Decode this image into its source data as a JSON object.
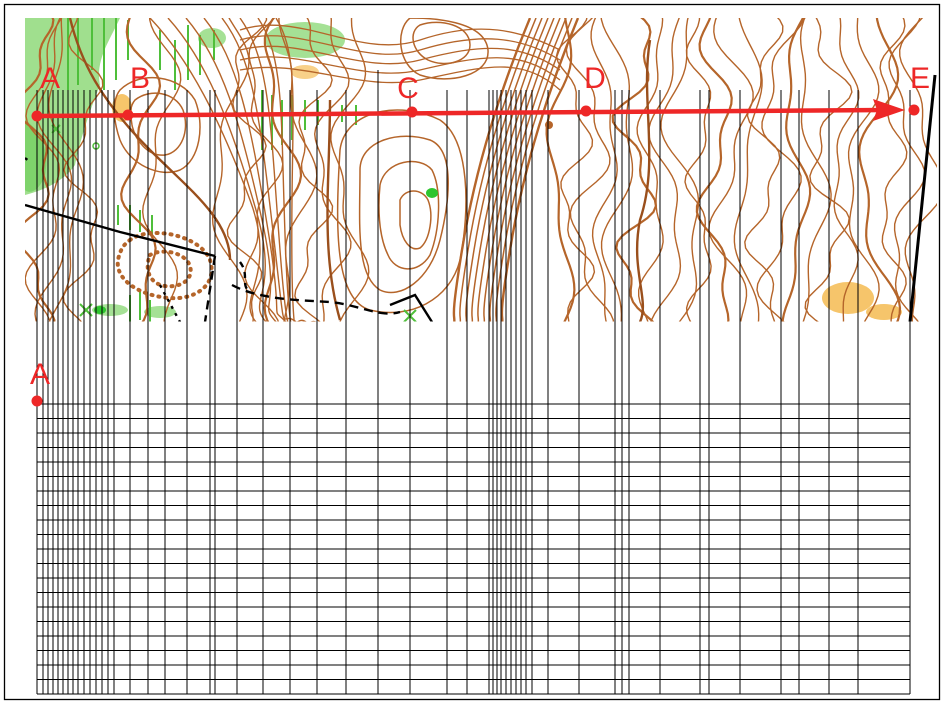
{
  "figure": {
    "points": [
      {
        "label": "A"
      },
      {
        "label": "B"
      },
      {
        "label": "C"
      },
      {
        "label": "D"
      },
      {
        "label": "E"
      }
    ],
    "profile_start_label": "A",
    "colors": {
      "contour": "#b5652a",
      "contour_index": "#9a4f1c",
      "vegetation_green": "#7ed36b",
      "green_feature": "#2ec52e",
      "open_land_yellow": "#f6c56b",
      "route_red": "#ee2727",
      "track_black": "#000000",
      "grid_line": "#000000"
    },
    "icons": [
      "x-marker-icon",
      "dot-marker-icon"
    ]
  }
}
